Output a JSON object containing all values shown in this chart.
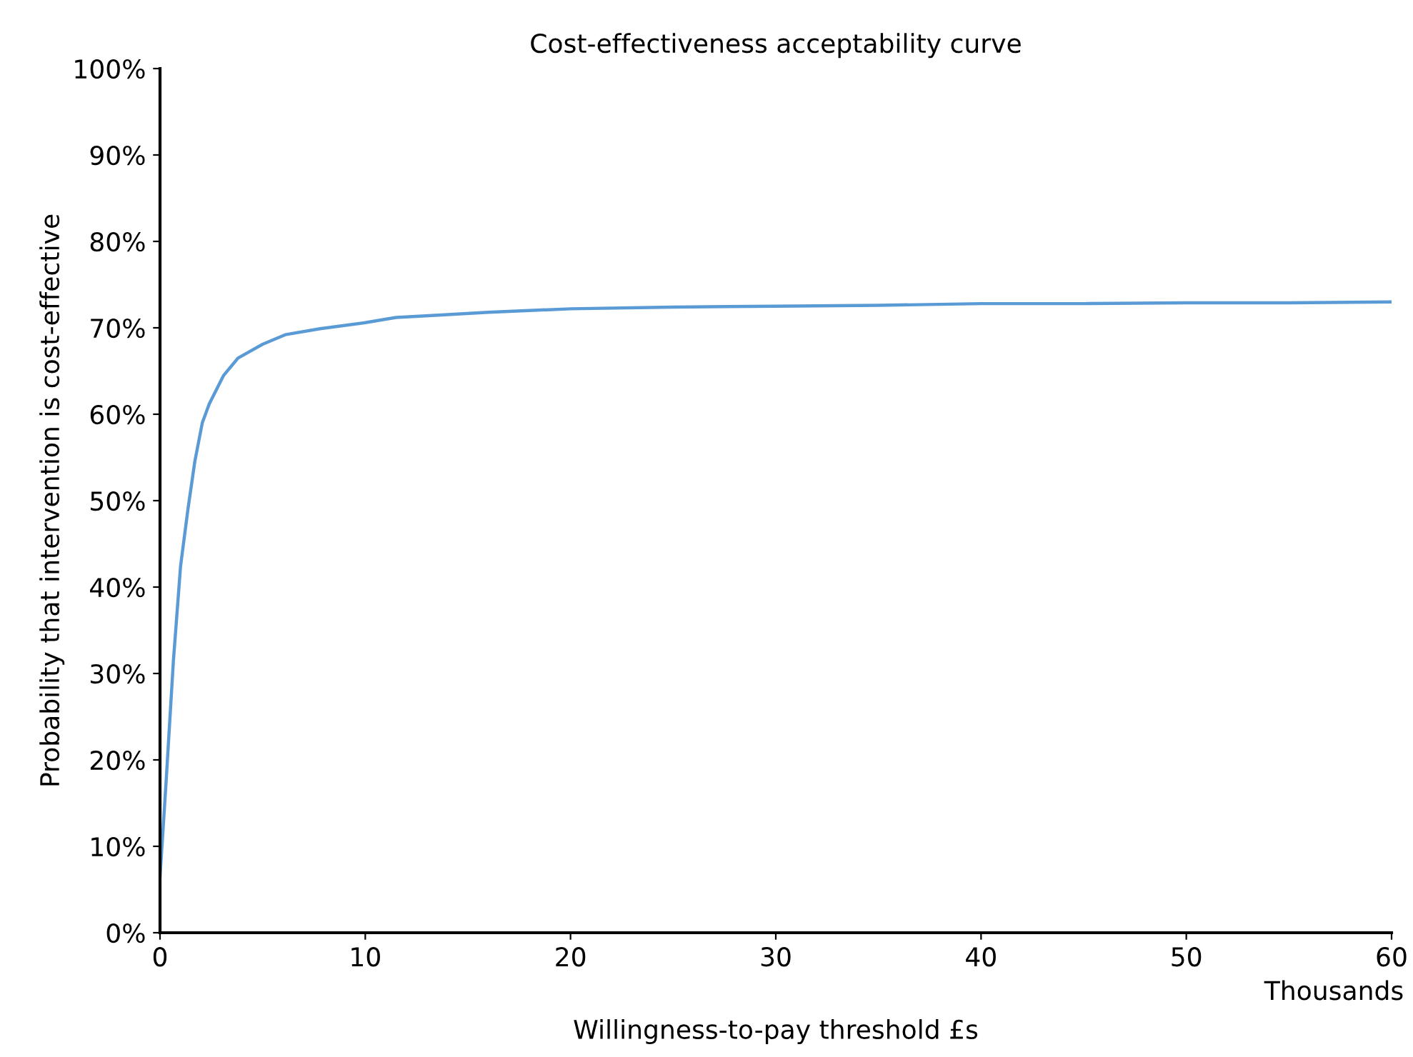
{
  "chart_data": {
    "type": "line",
    "title": "Cost-effectiveness acceptability curve",
    "xlabel": "Willingness-to-pay threshold £s",
    "ylabel": "Probability that intervention is cost-effective",
    "annotations": [
      "Thousands"
    ],
    "series": [
      {
        "color": "#5b9bd5",
        "x": [
          0,
          0.3,
          0.65,
          1.0,
          1.36,
          1.7,
          2.06,
          2.4,
          3.1,
          3.8,
          5.0,
          6.1,
          7.8,
          10,
          11.5,
          13.1,
          16,
          20,
          25,
          30,
          35,
          40,
          45,
          50,
          55,
          60
        ],
        "values": [
          6.5,
          17.6,
          31.4,
          42.4,
          49,
          54.6,
          59,
          61.2,
          64.5,
          66.5,
          68.1,
          69.2,
          69.9,
          70.6,
          71.2,
          71.4,
          71.8,
          72.2,
          72.4,
          72.5,
          72.6,
          72.8,
          72.8,
          72.9,
          72.9,
          73.0
        ]
      }
    ],
    "xlim": [
      0,
      60
    ],
    "xticks": [
      0,
      10,
      20,
      30,
      40,
      50,
      60
    ],
    "ylim": [
      0,
      100
    ],
    "yticks": [
      {
        "value": 0,
        "label": "0%"
      },
      {
        "value": 10,
        "label": "10%"
      },
      {
        "value": 20,
        "label": "20%"
      },
      {
        "value": 30,
        "label": "30%"
      },
      {
        "value": 40,
        "label": "40%"
      },
      {
        "value": 50,
        "label": "50%"
      },
      {
        "value": 60,
        "label": "60%"
      },
      {
        "value": 70,
        "label": "70%"
      },
      {
        "value": 80,
        "label": "80%"
      },
      {
        "value": 90,
        "label": "90%"
      },
      {
        "value": 100,
        "label": "100%"
      }
    ],
    "grid": false,
    "legend": false
  }
}
